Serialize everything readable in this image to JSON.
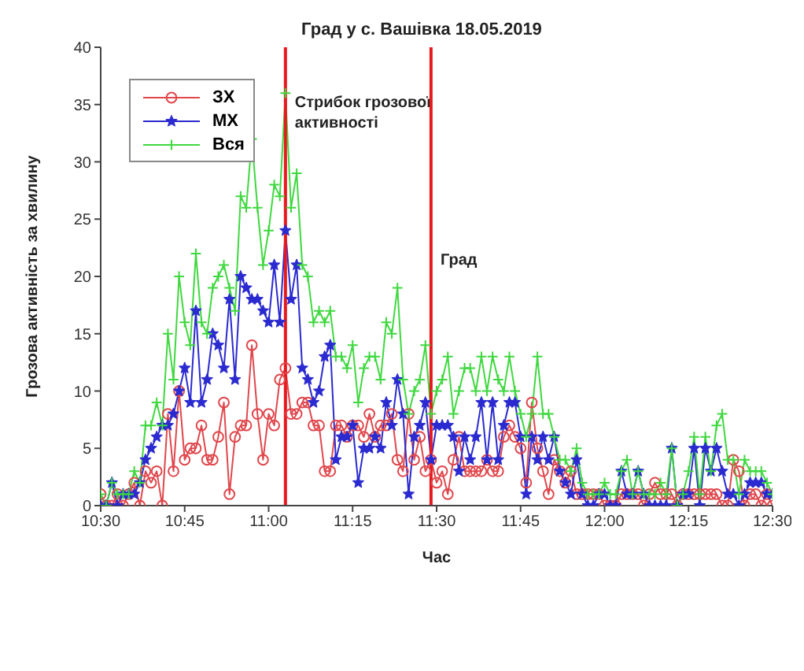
{
  "chart_data": {
    "type": "line",
    "title": "Град у с. Вашівка 18.05.2019",
    "xlabel": "Час",
    "ylabel": "Грозова активність за хвилину",
    "x": [
      "2019-05-18T10:30",
      "2019-05-18T10:31",
      "2019-05-18T10:32",
      "2019-05-18T10:33",
      "2019-05-18T10:34",
      "2019-05-18T10:35",
      "2019-05-18T10:36",
      "2019-05-18T10:37",
      "2019-05-18T10:38",
      "2019-05-18T10:39",
      "2019-05-18T10:40",
      "2019-05-18T10:41",
      "2019-05-18T10:42",
      "2019-05-18T10:43",
      "2019-05-18T10:44",
      "2019-05-18T10:45",
      "2019-05-18T10:46",
      "2019-05-18T10:47",
      "2019-05-18T10:48",
      "2019-05-18T10:49",
      "2019-05-18T10:50",
      "2019-05-18T10:51",
      "2019-05-18T10:52",
      "2019-05-18T10:53",
      "2019-05-18T10:54",
      "2019-05-18T10:55",
      "2019-05-18T10:56",
      "2019-05-18T10:57",
      "2019-05-18T10:58",
      "2019-05-18T10:59",
      "2019-05-18T11:00",
      "2019-05-18T11:01",
      "2019-05-18T11:02",
      "2019-05-18T11:03",
      "2019-05-18T11:04",
      "2019-05-18T11:05",
      "2019-05-18T11:06",
      "2019-05-18T11:07",
      "2019-05-18T11:08",
      "2019-05-18T11:09",
      "2019-05-18T11:10",
      "2019-05-18T11:11",
      "2019-05-18T11:12",
      "2019-05-18T11:13",
      "2019-05-18T11:14",
      "2019-05-18T11:15",
      "2019-05-18T11:16",
      "2019-05-18T11:17",
      "2019-05-18T11:18",
      "2019-05-18T11:19",
      "2019-05-18T11:20",
      "2019-05-18T11:21",
      "2019-05-18T11:22",
      "2019-05-18T11:23",
      "2019-05-18T11:24",
      "2019-05-18T11:25",
      "2019-05-18T11:26",
      "2019-05-18T11:27",
      "2019-05-18T11:28",
      "2019-05-18T11:29",
      "2019-05-18T11:30",
      "2019-05-18T11:31",
      "2019-05-18T11:32",
      "2019-05-18T11:33",
      "2019-05-18T11:34",
      "2019-05-18T11:35",
      "2019-05-18T11:36",
      "2019-05-18T11:37",
      "2019-05-18T11:38",
      "2019-05-18T11:39",
      "2019-05-18T11:40",
      "2019-05-18T11:41",
      "2019-05-18T11:42",
      "2019-05-18T11:43",
      "2019-05-18T11:44",
      "2019-05-18T11:45",
      "2019-05-18T11:46",
      "2019-05-18T11:47",
      "2019-05-18T11:48",
      "2019-05-18T11:49",
      "2019-05-18T11:50",
      "2019-05-18T11:51",
      "2019-05-18T11:52",
      "2019-05-18T11:53",
      "2019-05-18T11:54",
      "2019-05-18T11:55",
      "2019-05-18T11:56",
      "2019-05-18T11:57",
      "2019-05-18T11:58",
      "2019-05-18T11:59",
      "2019-05-18T12:00",
      "2019-05-18T12:01",
      "2019-05-18T12:02",
      "2019-05-18T12:03",
      "2019-05-18T12:04",
      "2019-05-18T12:05",
      "2019-05-18T12:06",
      "2019-05-18T12:07",
      "2019-05-18T12:08",
      "2019-05-18T12:09",
      "2019-05-18T12:10",
      "2019-05-18T12:11",
      "2019-05-18T12:12",
      "2019-05-18T12:13",
      "2019-05-18T12:14",
      "2019-05-18T12:15",
      "2019-05-18T12:16",
      "2019-05-18T12:17",
      "2019-05-18T12:18",
      "2019-05-18T12:19",
      "2019-05-18T12:20",
      "2019-05-18T12:21",
      "2019-05-18T12:22",
      "2019-05-18T12:23",
      "2019-05-18T12:24",
      "2019-05-18T12:25",
      "2019-05-18T12:26",
      "2019-05-18T12:27",
      "2019-05-18T12:28",
      "2019-05-18T12:29",
      "2019-05-18T12:30"
    ],
    "series": [
      {
        "name": "ЗХ",
        "color": "#e0474c",
        "marker": "circle",
        "values": [
          1,
          0,
          0,
          1,
          0,
          1,
          2,
          0,
          3,
          2,
          3,
          0,
          8,
          3,
          10,
          4,
          5,
          5,
          7,
          4,
          4,
          6,
          9,
          1,
          6,
          7,
          7,
          14,
          8,
          4,
          8,
          7,
          11,
          12,
          8,
          8,
          9,
          9,
          7,
          7,
          3,
          3,
          7,
          7,
          6,
          7,
          7,
          6,
          8,
          6,
          7,
          7,
          8,
          4,
          3,
          8,
          4,
          6,
          3,
          4,
          2,
          3,
          1,
          4,
          6,
          3,
          3,
          3,
          3,
          4,
          3,
          3,
          6,
          7,
          6,
          5,
          2,
          9,
          5,
          3,
          1,
          4,
          3,
          2,
          3,
          1,
          1,
          1,
          1,
          1,
          0,
          0,
          0,
          1,
          1,
          1,
          1,
          0,
          1,
          2,
          1,
          1,
          1,
          0,
          1,
          1,
          1,
          1,
          1,
          1,
          1,
          0,
          0,
          4,
          3,
          0,
          1,
          1,
          0,
          1,
          0
        ]
      },
      {
        "name": "МХ",
        "color": "#2a2ad0",
        "marker": "star",
        "values": [
          0,
          0,
          2,
          0,
          1,
          1,
          1,
          2,
          4,
          5,
          6,
          7,
          7,
          8,
          10,
          12,
          9,
          17,
          9,
          11,
          15,
          14,
          12,
          18,
          11,
          20,
          19,
          18,
          18,
          17,
          16,
          21,
          16,
          24,
          18,
          21,
          12,
          11,
          9,
          10,
          13,
          14,
          4,
          6,
          6,
          7,
          2,
          5,
          5,
          6,
          5,
          9,
          7,
          11,
          8,
          1,
          6,
          7,
          9,
          4,
          7,
          7,
          7,
          6,
          3,
          6,
          4,
          6,
          9,
          4,
          9,
          4,
          7,
          9,
          9,
          6,
          1,
          6,
          4,
          6,
          4,
          6,
          3,
          2,
          1,
          4,
          1,
          0,
          0,
          1,
          1,
          0,
          0,
          3,
          1,
          1,
          3,
          1,
          0,
          0,
          0,
          0,
          5,
          0,
          1,
          1,
          5,
          0,
          5,
          3,
          5,
          3,
          1,
          1,
          0,
          1,
          2,
          2,
          2,
          1,
          1
        ]
      },
      {
        "name": "Вся",
        "color": "#3fd83f",
        "marker": "cross",
        "values": [
          1,
          0,
          2,
          1,
          1,
          1,
          3,
          2,
          7,
          7,
          9,
          7,
          15,
          11,
          20,
          16,
          14,
          22,
          16,
          15,
          19,
          20,
          21,
          19,
          17,
          27,
          26,
          32,
          26,
          21,
          24,
          28,
          27,
          36,
          26,
          29,
          21,
          20,
          16,
          17,
          16,
          17,
          13,
          13,
          12,
          14,
          9,
          12,
          13,
          13,
          11,
          16,
          15,
          19,
          11,
          8,
          10,
          11,
          14,
          8,
          10,
          11,
          13,
          8,
          10,
          12,
          12,
          10,
          13,
          10,
          13,
          11,
          10,
          13,
          10,
          8,
          6,
          8,
          13,
          8,
          8,
          6,
          4,
          4,
          3,
          5,
          2,
          1,
          1,
          1,
          2,
          1,
          1,
          3,
          4,
          1,
          3,
          1,
          1,
          1,
          2,
          1,
          5,
          0,
          1,
          3,
          6,
          1,
          6,
          3,
          7,
          8,
          4,
          4,
          1,
          4,
          3,
          3,
          3,
          2,
          1
        ]
      }
    ],
    "xlim": [
      "2019-05-18T10:30",
      "2019-05-18T12:30"
    ],
    "xticks": [
      {
        "value": "2019-05-18T10:30",
        "label": "10:30"
      },
      {
        "value": "2019-05-18T10:45",
        "label": "10:45"
      },
      {
        "value": "2019-05-18T11:00",
        "label": "11:00"
      },
      {
        "value": "2019-05-18T11:15",
        "label": "11:15"
      },
      {
        "value": "2019-05-18T11:30",
        "label": "11:30"
      },
      {
        "value": "2019-05-18T11:45",
        "label": "11:45"
      },
      {
        "value": "2019-05-18T12:00",
        "label": "12:00"
      },
      {
        "value": "2019-05-18T12:15",
        "label": "12:15"
      },
      {
        "value": "2019-05-18T12:30",
        "label": "12:30"
      }
    ],
    "ylim": [
      0,
      40
    ],
    "yticks": [
      0,
      5,
      10,
      15,
      20,
      25,
      30,
      35,
      40
    ],
    "ref_lines": [
      {
        "axis": "x",
        "value": "2019-05-18T11:03",
        "label": "Стрибок грозової активності",
        "color": "#e8191e"
      },
      {
        "axis": "x",
        "value": "2019-05-18T11:29",
        "label": "Град",
        "color": "#e8191e"
      }
    ],
    "legend": "top left",
    "grid": false,
    "line_style": "solid"
  }
}
